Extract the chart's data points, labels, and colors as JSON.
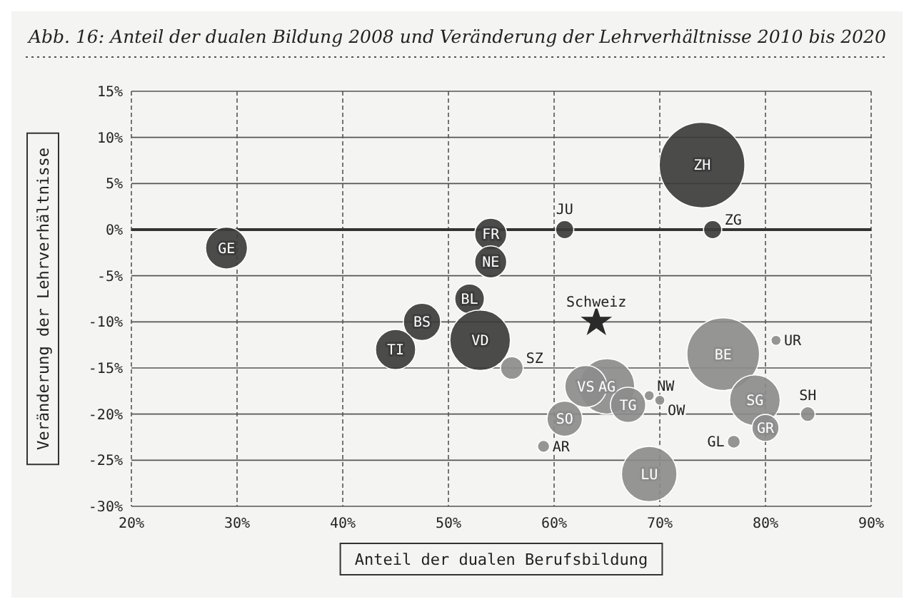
{
  "chart_data": {
    "type": "bubble",
    "title": "Abb. 16: Anteil der dualen Bildung 2008 und Veränderung der Lehrverhältnisse 2010 bis 2020",
    "xlabel": "Anteil der dualen Berufsbildung",
    "ylabel": "Veränderung der Lehrverhältnisse",
    "xlim": [
      20,
      90
    ],
    "ylim": [
      -30,
      15
    ],
    "xticks": [
      {
        "value": 20,
        "label": "20%"
      },
      {
        "value": 30,
        "label": "30%"
      },
      {
        "value": 40,
        "label": "40%"
      },
      {
        "value": 50,
        "label": "50%"
      },
      {
        "value": 60,
        "label": "60%"
      },
      {
        "value": 70,
        "label": "70%"
      },
      {
        "value": 80,
        "label": "80%"
      },
      {
        "value": 90,
        "label": "90%"
      }
    ],
    "yticks": [
      {
        "value": -30,
        "label": "-30%"
      },
      {
        "value": -25,
        "label": "-25%"
      },
      {
        "value": -20,
        "label": "-20%"
      },
      {
        "value": -15,
        "label": "-15%"
      },
      {
        "value": -10,
        "label": "-10%"
      },
      {
        "value": -5,
        "label": "-5%"
      },
      {
        "value": 0,
        "label": "0%"
      },
      {
        "value": 5,
        "label": "5%"
      },
      {
        "value": 10,
        "label": "10%"
      },
      {
        "value": 15,
        "label": "15%"
      }
    ],
    "grid": true,
    "ref_lines": [
      {
        "axis": "y",
        "value": 0,
        "color": "#333333"
      }
    ],
    "series": [
      {
        "color": "#3c3c3c",
        "x": [
          74,
          75,
          61,
          54,
          54,
          52,
          53,
          47.5,
          45,
          29
        ],
        "values": [
          7,
          0,
          0,
          -0.5,
          -3.5,
          -7.5,
          -12,
          -10,
          -13,
          -2
        ],
        "sizes": [
          1,
          0.045,
          0.045,
          0.14,
          0.14,
          0.12,
          0.5,
          0.19,
          0.22,
          0.24
        ]
      },
      {
        "color": "#8c8c8c",
        "x": [
          56,
          81,
          76,
          65,
          63,
          67,
          69,
          70,
          79,
          84,
          80,
          61,
          77,
          59,
          69
        ],
        "values": [
          -15,
          -12,
          -13.5,
          -17,
          -17,
          -19,
          -18,
          -18.5,
          -18.5,
          -20,
          -21.5,
          -20.5,
          -23,
          -23.5,
          -26.5
        ],
        "sizes": [
          0.07,
          0.014,
          0.72,
          0.42,
          0.24,
          0.17,
          0.014,
          0.014,
          0.35,
          0.03,
          0.1,
          0.17,
          0.023,
          0.02,
          0.42
        ]
      },
      {
        "type": "scatter",
        "marker": "star",
        "color": "#2a2a2a",
        "x": [
          64
        ],
        "values": [
          -10
        ]
      }
    ],
    "annotations": [
      {
        "text": "ZH",
        "x": 74,
        "y": 7
      },
      {
        "text": "ZG",
        "x": 75,
        "y": 0
      },
      {
        "text": "JU",
        "x": 61,
        "y": 0
      },
      {
        "text": "FR",
        "x": 54,
        "y": -0.5
      },
      {
        "text": "NE",
        "x": 54,
        "y": -3.5
      },
      {
        "text": "BL",
        "x": 52,
        "y": -7.5
      },
      {
        "text": "VD",
        "x": 53,
        "y": -12
      },
      {
        "text": "BS",
        "x": 47.5,
        "y": -10
      },
      {
        "text": "TI",
        "x": 45,
        "y": -13
      },
      {
        "text": "GE",
        "x": 29,
        "y": -2
      },
      {
        "text": "SZ",
        "x": 56,
        "y": -15
      },
      {
        "text": "UR",
        "x": 81,
        "y": -12
      },
      {
        "text": "BE",
        "x": 76,
        "y": -13.5
      },
      {
        "text": "AG",
        "x": 65,
        "y": -17
      },
      {
        "text": "VS",
        "x": 63,
        "y": -17
      },
      {
        "text": "TG",
        "x": 67,
        "y": -19
      },
      {
        "text": "NW",
        "x": 69,
        "y": -18
      },
      {
        "text": "OW",
        "x": 70,
        "y": -18.5
      },
      {
        "text": "SG",
        "x": 79,
        "y": -18.5
      },
      {
        "text": "SH",
        "x": 84,
        "y": -20
      },
      {
        "text": "GR",
        "x": 80,
        "y": -21.5
      },
      {
        "text": "SO",
        "x": 61,
        "y": -20.5
      },
      {
        "text": "GL",
        "x": 77,
        "y": -23
      },
      {
        "text": "AR",
        "x": 59,
        "y": -23.5
      },
      {
        "text": "LU",
        "x": 69,
        "y": -26.5
      },
      {
        "text": "Schweiz",
        "x": 64,
        "y": -10
      }
    ]
  }
}
